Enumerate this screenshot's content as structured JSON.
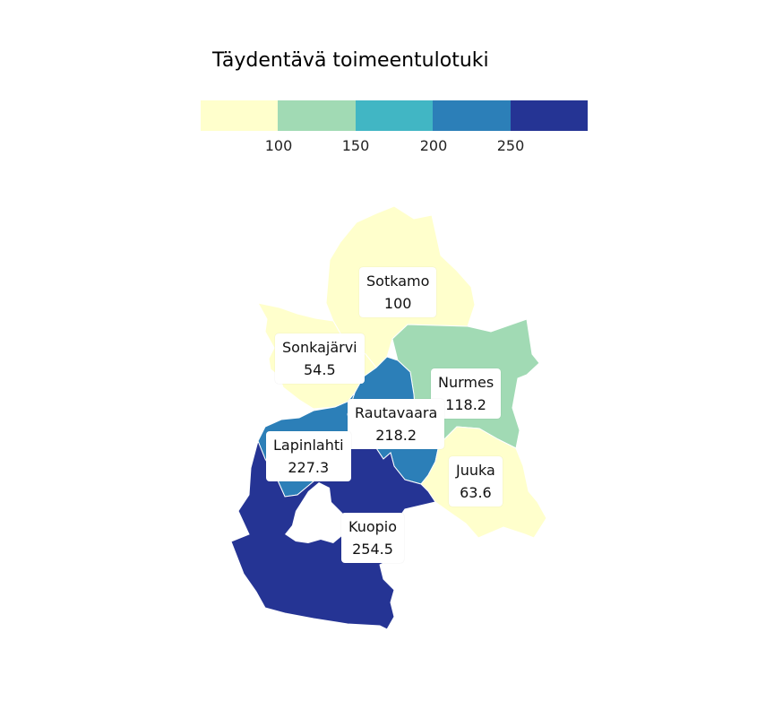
{
  "title": "Täydentävä toimeentulotuki",
  "legend": {
    "colors": [
      "#ffffcc",
      "#a1dab4",
      "#41b6c4",
      "#2c7fb8",
      "#253494"
    ],
    "ticks": [
      "100",
      "150",
      "200",
      "250"
    ]
  },
  "regions": [
    {
      "name": "Sotkamo",
      "value": "100",
      "color": "#ffffcc"
    },
    {
      "name": "Sonkajärvi",
      "value": "54.5",
      "color": "#ffffcc"
    },
    {
      "name": "Nurmes",
      "value": "118.2",
      "color": "#a1dab4"
    },
    {
      "name": "Rautavaara",
      "value": "218.2",
      "color": "#2c7fb8"
    },
    {
      "name": "Lapinlahti",
      "value": "227.3",
      "color": "#2c7fb8"
    },
    {
      "name": "Juuka",
      "value": "63.6",
      "color": "#ffffcc"
    },
    {
      "name": "Kuopio",
      "value": "254.5",
      "color": "#253494"
    }
  ]
}
